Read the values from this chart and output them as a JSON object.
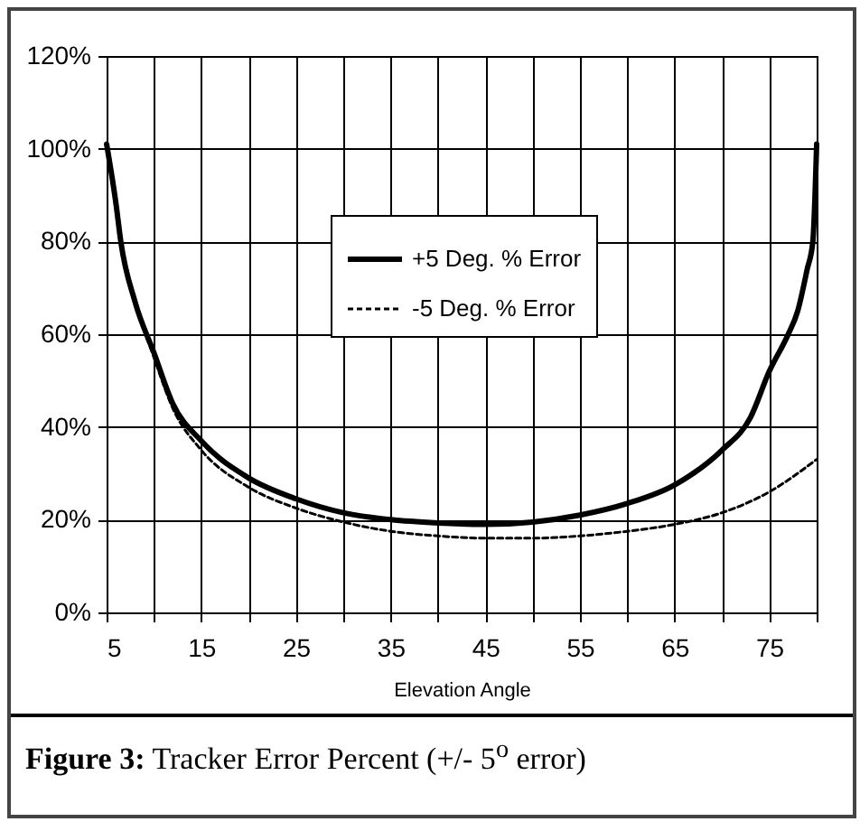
{
  "chart_data": {
    "type": "line",
    "xlabel": "Elevation Angle",
    "annotations": [
      "Figure 3: Tracker Error Percent (+/- 5$^{o}$ error)"
    ],
    "xlim": [
      5,
      80
    ],
    "xticks": [
      5,
      {
        "value": 10,
        "label": null
      },
      15,
      {
        "value": 20,
        "label": null
      },
      25,
      {
        "value": 30,
        "label": null
      },
      35,
      {
        "value": 40,
        "label": null
      },
      45,
      {
        "value": 50,
        "label": null
      },
      55,
      {
        "value": 60,
        "label": null
      },
      65,
      {
        "value": 70,
        "label": null
      },
      75,
      {
        "value": 80,
        "label": null
      }
    ],
    "ylim": [
      0,
      120
    ],
    "yticks": [
      {
        "value": 0,
        "label": "0%"
      },
      {
        "value": 20,
        "label": "20%"
      },
      {
        "value": 40,
        "label": "40%"
      },
      {
        "value": 60,
        "label": "60%"
      },
      {
        "value": 80,
        "label": "80%"
      },
      {
        "value": 100,
        "label": "100%"
      },
      {
        "value": 120,
        "label": "120%"
      }
    ],
    "grid": true,
    "legend": "top",
    "marker": "none",
    "series": [
      {
        "name": "+5 Deg. % Error",
        "color": "#000000",
        "line_style": "solid",
        "x": [
          5,
          6,
          6.5,
          8,
          10,
          12,
          15,
          20,
          25,
          30,
          35,
          40,
          45,
          50,
          55,
          60,
          65,
          70,
          73,
          75,
          77,
          78,
          79,
          79.6,
          80
        ],
        "values": [
          101,
          88,
          80,
          67,
          56,
          45,
          37,
          29,
          24.5,
          21.5,
          20,
          19.3,
          19,
          19.5,
          21,
          23.5,
          27.5,
          35,
          42,
          52,
          60,
          65,
          74,
          80,
          101
        ]
      },
      {
        "name": "-5 Deg. % Error",
        "color": "#000000",
        "line_style": "dashed",
        "x": [
          5,
          6,
          6.5,
          8,
          10,
          12,
          15,
          20,
          25,
          30,
          35,
          40,
          45,
          50,
          55,
          60,
          65,
          70,
          75,
          80
        ],
        "values": [
          101,
          88,
          80,
          67,
          55,
          44,
          35,
          27,
          22.5,
          19.5,
          17.5,
          16.5,
          16,
          16,
          16.5,
          17.5,
          19,
          21.5,
          26,
          33
        ]
      }
    ]
  }
}
